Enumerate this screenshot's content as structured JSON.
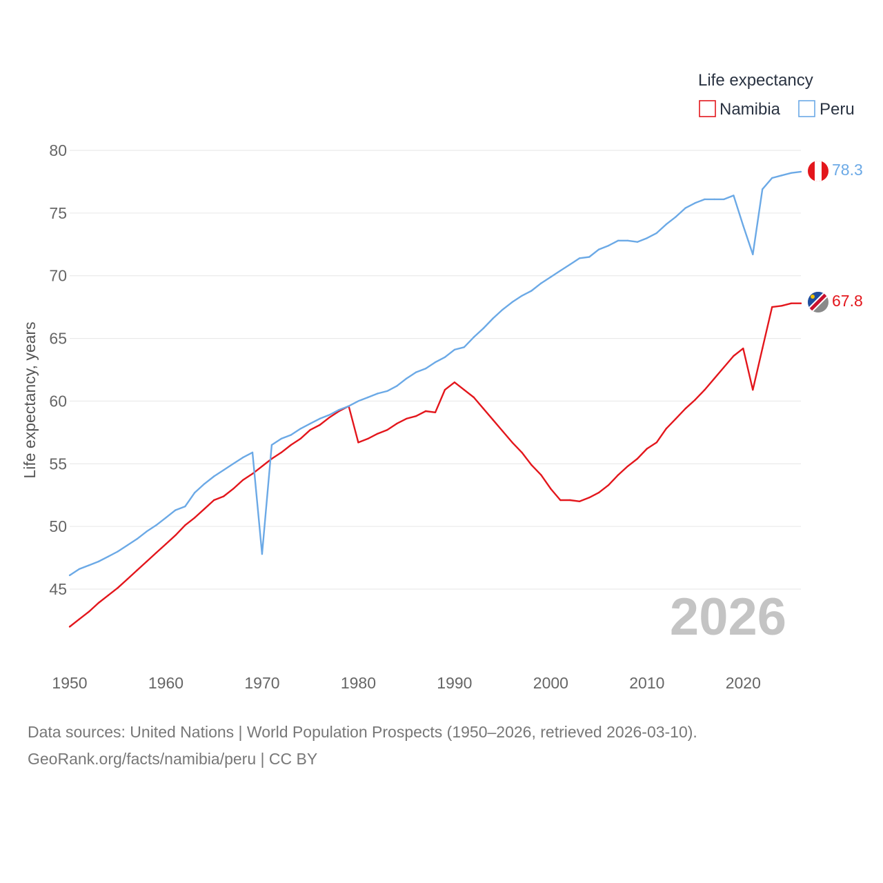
{
  "chart_data": {
    "type": "line",
    "legend_title": "Life expectancy",
    "legend_position": "top-right",
    "ylabel": "Life expectancy, years",
    "xlim": [
      1950,
      2026
    ],
    "ylim": [
      42,
      80
    ],
    "x_ticks": [
      "1950",
      "1960",
      "1970",
      "1980",
      "1990",
      "2000",
      "2010",
      "2020"
    ],
    "y_ticks": [
      "45",
      "50",
      "55",
      "60",
      "65",
      "70",
      "75",
      "80"
    ],
    "year_label": "2026",
    "x": [
      1950,
      1951,
      1952,
      1953,
      1954,
      1955,
      1956,
      1957,
      1958,
      1959,
      1960,
      1961,
      1962,
      1963,
      1964,
      1965,
      1966,
      1967,
      1968,
      1969,
      1970,
      1971,
      1972,
      1973,
      1974,
      1975,
      1976,
      1977,
      1978,
      1979,
      1980,
      1981,
      1982,
      1983,
      1984,
      1985,
      1986,
      1987,
      1988,
      1989,
      1990,
      1991,
      1992,
      1993,
      1994,
      1995,
      1996,
      1997,
      1998,
      1999,
      2000,
      2001,
      2002,
      2003,
      2004,
      2005,
      2006,
      2007,
      2008,
      2009,
      2010,
      2011,
      2012,
      2013,
      2014,
      2015,
      2016,
      2017,
      2018,
      2019,
      2020,
      2021,
      2022,
      2023,
      2024,
      2025,
      2026
    ],
    "series": [
      {
        "name": "Namibia",
        "color": "#e3161c",
        "end_label": "67.8",
        "values": [
          42.0,
          42.6,
          43.2,
          43.9,
          44.5,
          45.1,
          45.8,
          46.5,
          47.2,
          47.9,
          48.6,
          49.3,
          50.1,
          50.7,
          51.4,
          52.1,
          52.4,
          53.0,
          53.7,
          54.2,
          54.8,
          55.4,
          55.9,
          56.5,
          57.0,
          57.7,
          58.1,
          58.7,
          59.2,
          59.6,
          56.7,
          57.0,
          57.4,
          57.7,
          58.2,
          58.6,
          58.8,
          59.2,
          59.1,
          60.9,
          61.5,
          60.9,
          60.3,
          59.4,
          58.5,
          57.6,
          56.7,
          55.9,
          54.9,
          54.1,
          53.0,
          52.1,
          52.1,
          52.0,
          52.3,
          52.7,
          53.3,
          54.1,
          54.8,
          55.4,
          56.2,
          56.7,
          57.8,
          58.6,
          59.4,
          60.1,
          60.9,
          61.8,
          62.7,
          63.6,
          64.2,
          60.9,
          64.2,
          67.5,
          67.6,
          67.8,
          67.8
        ]
      },
      {
        "name": "Peru",
        "color": "#6ba9e6",
        "end_label": "78.3",
        "values": [
          46.1,
          46.6,
          46.9,
          47.2,
          47.6,
          48.0,
          48.5,
          49.0,
          49.6,
          50.1,
          50.7,
          51.3,
          51.6,
          52.7,
          53.4,
          54.0,
          54.5,
          55.0,
          55.5,
          55.9,
          47.8,
          56.5,
          57.0,
          57.3,
          57.8,
          58.2,
          58.6,
          58.9,
          59.3,
          59.6,
          60.0,
          60.3,
          60.6,
          60.8,
          61.2,
          61.8,
          62.3,
          62.6,
          63.1,
          63.5,
          64.1,
          64.3,
          65.1,
          65.8,
          66.6,
          67.3,
          67.9,
          68.4,
          68.8,
          69.4,
          69.9,
          70.4,
          70.9,
          71.4,
          71.5,
          72.1,
          72.4,
          72.8,
          72.8,
          72.7,
          73.0,
          73.4,
          74.1,
          74.7,
          75.4,
          75.8,
          76.1,
          76.1,
          76.1,
          76.4,
          74.0,
          71.7,
          76.9,
          77.8,
          78.0,
          78.2,
          78.3
        ]
      }
    ]
  },
  "sources": {
    "line1": "Data sources: United Nations | World Population Prospects (1950–2026, retrieved 2026-03-10).",
    "line2": "GeoRank.org/facts/namibia/peru | CC BY"
  }
}
